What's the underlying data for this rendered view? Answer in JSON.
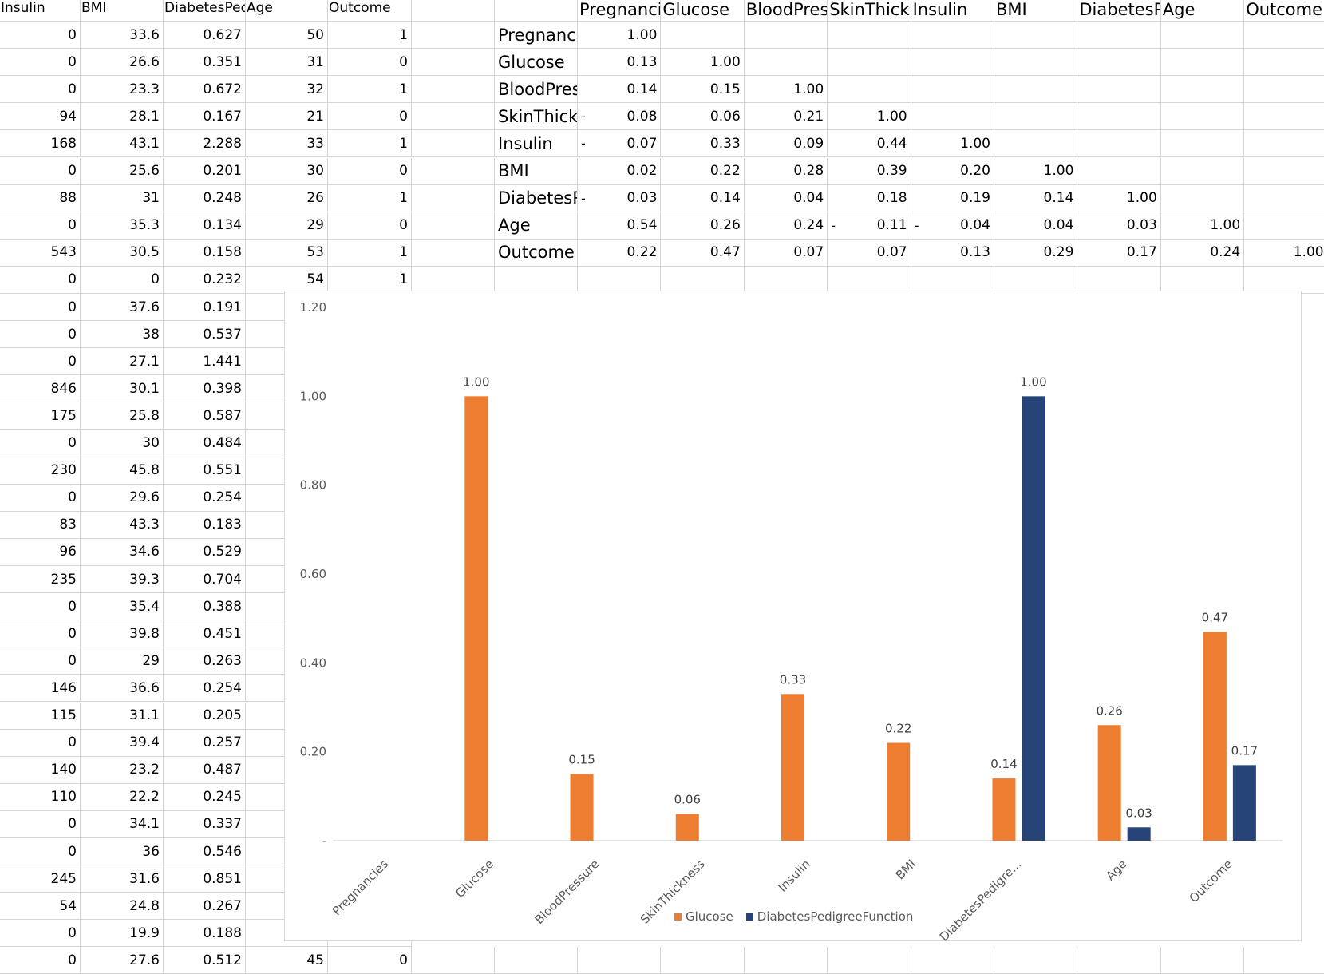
{
  "left_table": {
    "headers": [
      "Insulin",
      "BMI",
      "DiabetesPed",
      "Age",
      "Outcome"
    ],
    "rows": [
      [
        "0",
        "33.6",
        "0.627",
        "50",
        "1"
      ],
      [
        "0",
        "26.6",
        "0.351",
        "31",
        "0"
      ],
      [
        "0",
        "23.3",
        "0.672",
        "32",
        "1"
      ],
      [
        "94",
        "28.1",
        "0.167",
        "21",
        "0"
      ],
      [
        "168",
        "43.1",
        "2.288",
        "33",
        "1"
      ],
      [
        "0",
        "25.6",
        "0.201",
        "30",
        "0"
      ],
      [
        "88",
        "31",
        "0.248",
        "26",
        "1"
      ],
      [
        "0",
        "35.3",
        "0.134",
        "29",
        "0"
      ],
      [
        "543",
        "30.5",
        "0.158",
        "53",
        "1"
      ],
      [
        "0",
        "0",
        "0.232",
        "54",
        "1"
      ],
      [
        "0",
        "37.6",
        "0.191",
        "",
        ""
      ],
      [
        "0",
        "38",
        "0.537",
        "",
        ""
      ],
      [
        "0",
        "27.1",
        "1.441",
        "",
        ""
      ],
      [
        "846",
        "30.1",
        "0.398",
        "",
        ""
      ],
      [
        "175",
        "25.8",
        "0.587",
        "",
        ""
      ],
      [
        "0",
        "30",
        "0.484",
        "",
        ""
      ],
      [
        "230",
        "45.8",
        "0.551",
        "",
        ""
      ],
      [
        "0",
        "29.6",
        "0.254",
        "",
        ""
      ],
      [
        "83",
        "43.3",
        "0.183",
        "",
        ""
      ],
      [
        "96",
        "34.6",
        "0.529",
        "",
        ""
      ],
      [
        "235",
        "39.3",
        "0.704",
        "",
        ""
      ],
      [
        "0",
        "35.4",
        "0.388",
        "",
        ""
      ],
      [
        "0",
        "39.8",
        "0.451",
        "",
        ""
      ],
      [
        "0",
        "29",
        "0.263",
        "",
        ""
      ],
      [
        "146",
        "36.6",
        "0.254",
        "",
        ""
      ],
      [
        "115",
        "31.1",
        "0.205",
        "",
        ""
      ],
      [
        "0",
        "39.4",
        "0.257",
        "",
        ""
      ],
      [
        "140",
        "23.2",
        "0.487",
        "",
        ""
      ],
      [
        "110",
        "22.2",
        "0.245",
        "",
        ""
      ],
      [
        "0",
        "34.1",
        "0.337",
        "",
        ""
      ],
      [
        "0",
        "36",
        "0.546",
        "",
        ""
      ],
      [
        "245",
        "31.6",
        "0.851",
        "",
        ""
      ],
      [
        "54",
        "24.8",
        "0.267",
        "",
        ""
      ],
      [
        "0",
        "19.9",
        "0.188",
        "",
        ""
      ],
      [
        "0",
        "27.6",
        "0.512",
        "45",
        "0"
      ]
    ]
  },
  "corr_table": {
    "col_headers": [
      "Pregnanci",
      "Glucose",
      "BloodPres",
      "SkinThickr",
      "Insulin",
      "BMI",
      "DiabetesP",
      "Age",
      "Outcome"
    ],
    "row_labels": [
      "Pregnanci",
      "Glucose",
      "BloodPres",
      "SkinThickr",
      "Insulin",
      "BMI",
      "DiabetesP",
      "Age",
      "Outcome"
    ],
    "dash_mark": "-",
    "rows": [
      [
        {
          "v": "1.00"
        }
      ],
      [
        {
          "v": "0.13"
        },
        {
          "v": "1.00"
        }
      ],
      [
        {
          "v": "0.14"
        },
        {
          "v": "0.15"
        },
        {
          "v": "1.00"
        }
      ],
      [
        {
          "v": "0.08",
          "neg": true
        },
        {
          "v": "0.06"
        },
        {
          "v": "0.21"
        },
        {
          "v": "1.00"
        }
      ],
      [
        {
          "v": "0.07",
          "neg": true
        },
        {
          "v": "0.33"
        },
        {
          "v": "0.09"
        },
        {
          "v": "0.44"
        },
        {
          "v": "1.00"
        }
      ],
      [
        {
          "v": "0.02"
        },
        {
          "v": "0.22"
        },
        {
          "v": "0.28"
        },
        {
          "v": "0.39"
        },
        {
          "v": "0.20"
        },
        {
          "v": "1.00"
        }
      ],
      [
        {
          "v": "0.03",
          "neg": true
        },
        {
          "v": "0.14"
        },
        {
          "v": "0.04"
        },
        {
          "v": "0.18"
        },
        {
          "v": "0.19"
        },
        {
          "v": "0.14"
        },
        {
          "v": "1.00"
        }
      ],
      [
        {
          "v": "0.54"
        },
        {
          "v": "0.26"
        },
        {
          "v": "0.24"
        },
        {
          "v": "0.11",
          "neg": true
        },
        {
          "v": "0.04",
          "neg": true
        },
        {
          "v": "0.04"
        },
        {
          "v": "0.03"
        },
        {
          "v": "1.00"
        }
      ],
      [
        {
          "v": "0.22"
        },
        {
          "v": "0.47"
        },
        {
          "v": "0.07"
        },
        {
          "v": "0.07"
        },
        {
          "v": "0.13"
        },
        {
          "v": "0.29"
        },
        {
          "v": "0.17"
        },
        {
          "v": "0.24"
        },
        {
          "v": "1.00"
        }
      ]
    ]
  },
  "chart_data": {
    "type": "bar",
    "categories": [
      "Pregnancies",
      "Glucose",
      "BloodPressure",
      "SkinThickness",
      "Insulin",
      "BMI",
      "DiabetesPedigre...",
      "Age",
      "Outcome"
    ],
    "series": [
      {
        "name": "Glucose",
        "color": "#ed7d31",
        "values": [
          null,
          1.0,
          0.15,
          0.06,
          0.33,
          0.22,
          0.14,
          0.26,
          0.47
        ]
      },
      {
        "name": "DiabetesPedigreeFunction",
        "color": "#264478",
        "values": [
          null,
          null,
          null,
          null,
          null,
          null,
          1.0,
          0.03,
          0.17
        ]
      }
    ],
    "data_labels": {
      "Glucose": [
        "",
        "1.00",
        "0.15",
        "0.06",
        "0.33",
        "0.22",
        "0.14",
        "0.26",
        "0.47"
      ],
      "DiabetesPedigreeFunction": [
        "",
        "",
        "",
        "",
        "",
        "",
        "1.00",
        "0.03",
        "0.17"
      ]
    },
    "ylim": [
      0,
      1.2
    ],
    "y_ticks": [
      0,
      0.2,
      0.4,
      0.6,
      0.8,
      1.0,
      1.2
    ],
    "y_tick_labels": [
      "-",
      "0.20",
      "0.40",
      "0.60",
      "0.80",
      "1.00",
      "1.20"
    ],
    "grid": false,
    "legend": "bottom"
  }
}
